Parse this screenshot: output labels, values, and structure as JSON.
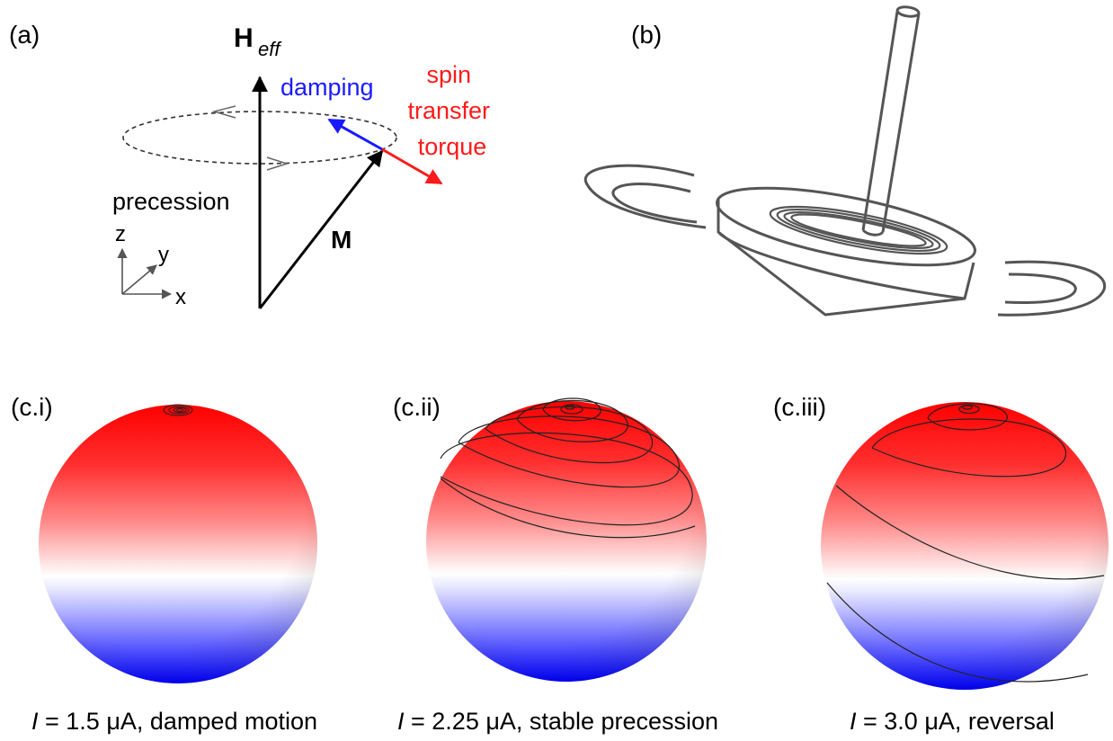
{
  "panel_a": {
    "label": "(a)",
    "field_main": "H",
    "field_sub": "eff",
    "damping": "damping",
    "stt": [
      "spin",
      "transfer",
      "torque"
    ],
    "precession": "precession",
    "magnetization": "M",
    "axes": {
      "z": "z",
      "y": "y",
      "x": "x"
    },
    "colors": {
      "damping": "#1a1aff",
      "stt": "#ff1a1a"
    }
  },
  "panel_b": {
    "label": "(b)"
  },
  "panels_c": [
    {
      "label": "(c.i)",
      "current_var": "I",
      "caption_rest": " = 1.5 μA, damped motion"
    },
    {
      "label": "(c.ii)",
      "current_var": "I",
      "caption_rest": " = 2.25 μA, stable precession"
    },
    {
      "label": "(c.iii)",
      "current_var": "I",
      "caption_rest": " = 3.0 μA, reversal"
    }
  ],
  "sphere_colors": {
    "top": "#ff0000",
    "equator": "#ffffff",
    "bottom": "#0000ff"
  }
}
